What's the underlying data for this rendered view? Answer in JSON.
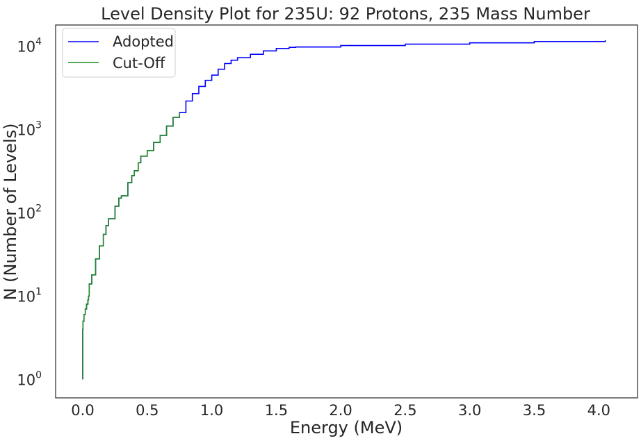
{
  "chart_data": {
    "type": "line",
    "title": "Level Density Plot for 235U: 92 Protons, 235 Mass Number",
    "xlabel": "Energy (MeV)",
    "ylabel": "N (Number of Levels)",
    "xlim": [
      -0.21,
      4.3
    ],
    "ylim": [
      0.6,
      18000
    ],
    "yscale": "log",
    "grid": false,
    "legend_position": "top-left",
    "x_ticks": [
      0.0,
      0.5,
      1.0,
      1.5,
      2.0,
      2.5,
      3.0,
      3.5,
      4.0
    ],
    "x_tick_labels": [
      "0.0",
      "0.5",
      "1.0",
      "1.5",
      "2.0",
      "2.5",
      "3.0",
      "3.5",
      "4.0"
    ],
    "y_ticks": [
      1,
      10,
      100,
      1000,
      10000
    ],
    "y_tick_labels": [
      {
        "base": "10",
        "exp": "0"
      },
      {
        "base": "10",
        "exp": "1"
      },
      {
        "base": "10",
        "exp": "2"
      },
      {
        "base": "10",
        "exp": "3"
      },
      {
        "base": "10",
        "exp": "4"
      }
    ],
    "series": [
      {
        "name": "Adopted",
        "color": "#0000ff",
        "x": [
          0.0,
          0.0,
          0.0,
          0.0,
          0.002,
          0.01,
          0.02,
          0.03,
          0.04,
          0.045,
          0.05,
          0.07,
          0.1,
          0.13,
          0.16,
          0.18,
          0.2,
          0.25,
          0.28,
          0.3,
          0.35,
          0.38,
          0.4,
          0.43,
          0.45,
          0.5,
          0.55,
          0.6,
          0.65,
          0.7,
          0.75,
          0.8,
          0.85,
          0.9,
          0.95,
          1.0,
          1.05,
          1.1,
          1.15,
          1.2,
          1.3,
          1.4,
          1.5,
          1.6,
          1.65,
          2.0,
          2.5,
          3.0,
          3.5,
          4.05
        ],
        "y": [
          1,
          2,
          3,
          4,
          5,
          6,
          7,
          8,
          9,
          10,
          14,
          18,
          28,
          40,
          55,
          70,
          85,
          120,
          150,
          160,
          230,
          280,
          320,
          400,
          480,
          560,
          700,
          850,
          1100,
          1400,
          1600,
          2200,
          2700,
          3300,
          3900,
          4500,
          5300,
          6200,
          6800,
          7300,
          8000,
          8800,
          9400,
          9700,
          9800,
          10200,
          10600,
          11000,
          11400,
          11800
        ]
      },
      {
        "name": "Cut-Off",
        "color": "#228b22",
        "x": [
          0.0,
          0.0,
          0.0,
          0.0,
          0.002,
          0.01,
          0.02,
          0.03,
          0.04,
          0.045,
          0.05,
          0.07,
          0.1,
          0.13,
          0.16,
          0.18,
          0.2,
          0.25,
          0.28,
          0.3,
          0.35,
          0.38,
          0.4,
          0.43,
          0.45,
          0.5,
          0.55,
          0.6,
          0.65,
          0.7,
          0.75
        ],
        "y": [
          1,
          2,
          3,
          4,
          5,
          6,
          7,
          8,
          9,
          10,
          14,
          18,
          28,
          40,
          55,
          70,
          85,
          120,
          150,
          160,
          230,
          280,
          320,
          400,
          480,
          560,
          700,
          850,
          1100,
          1400,
          1600
        ]
      }
    ]
  }
}
